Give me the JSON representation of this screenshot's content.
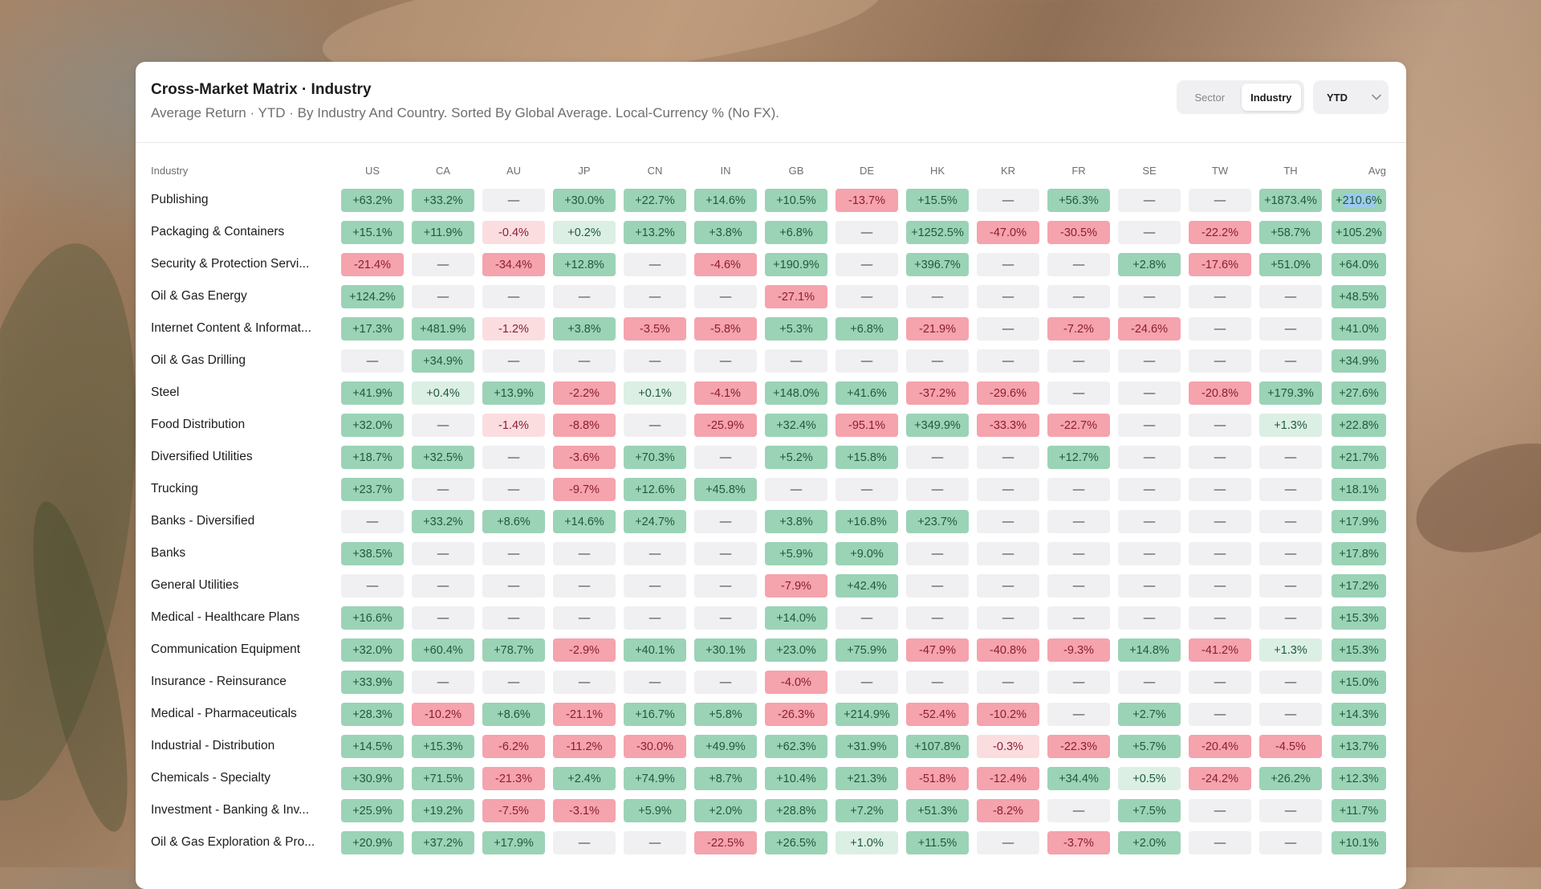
{
  "header": {
    "title": "Cross-Market Matrix · Industry",
    "subtitle": "Average Return · YTD · By Industry And Country. Sorted By Global Average. Local-Currency % (No FX)."
  },
  "toggle": {
    "options": [
      "Sector",
      "Industry"
    ],
    "active": "Industry"
  },
  "period": {
    "label": "YTD"
  },
  "icons": {
    "dropdown": "chevron-down-icon"
  },
  "colors": {
    "positive_strong": "#9bd3b6",
    "positive_weak": "#dcefe4",
    "negative_strong": "#f5a3ad",
    "negative_weak": "#fbdde0",
    "neutral": "#f0f0f2",
    "positive_text": "#1f5a3c",
    "negative_text": "#8a1f30",
    "highlight": "#9cc9ee"
  },
  "table": {
    "first_header": "Industry",
    "columns": [
      "US",
      "CA",
      "AU",
      "JP",
      "CN",
      "IN",
      "GB",
      "DE",
      "HK",
      "KR",
      "FR",
      "SE",
      "TW",
      "TH",
      "Avg"
    ],
    "rows": [
      {
        "label": "Publishing",
        "values": [
          "+63.2%",
          "+33.2%",
          "—",
          "+30.0%",
          "+22.7%",
          "+14.6%",
          "+10.5%",
          "-13.7%",
          "+15.5%",
          "—",
          "+56.3%",
          "—",
          "—",
          "+1873.4%",
          "+210.6%"
        ]
      },
      {
        "label": "Packaging & Containers",
        "values": [
          "+15.1%",
          "+11.9%",
          "-0.4%",
          "+0.2%",
          "+13.2%",
          "+3.8%",
          "+6.8%",
          "—",
          "+1252.5%",
          "-47.0%",
          "-30.5%",
          "—",
          "-22.2%",
          "+58.7%",
          "+105.2%"
        ]
      },
      {
        "label": "Security & Protection Servi...",
        "values": [
          "-21.4%",
          "—",
          "-34.4%",
          "+12.8%",
          "—",
          "-4.6%",
          "+190.9%",
          "—",
          "+396.7%",
          "—",
          "—",
          "+2.8%",
          "-17.6%",
          "+51.0%",
          "+64.0%"
        ]
      },
      {
        "label": "Oil & Gas Energy",
        "values": [
          "+124.2%",
          "—",
          "—",
          "—",
          "—",
          "—",
          "-27.1%",
          "—",
          "—",
          "—",
          "—",
          "—",
          "—",
          "—",
          "+48.5%"
        ]
      },
      {
        "label": "Internet Content & Informat...",
        "values": [
          "+17.3%",
          "+481.9%",
          "-1.2%",
          "+3.8%",
          "-3.5%",
          "-5.8%",
          "+5.3%",
          "+6.8%",
          "-21.9%",
          "—",
          "-7.2%",
          "-24.6%",
          "—",
          "—",
          "+41.0%"
        ]
      },
      {
        "label": "Oil & Gas Drilling",
        "values": [
          "—",
          "+34.9%",
          "—",
          "—",
          "—",
          "—",
          "—",
          "—",
          "—",
          "—",
          "—",
          "—",
          "—",
          "—",
          "+34.9%"
        ]
      },
      {
        "label": "Steel",
        "values": [
          "+41.9%",
          "+0.4%",
          "+13.9%",
          "-2.2%",
          "+0.1%",
          "-4.1%",
          "+148.0%",
          "+41.6%",
          "-37.2%",
          "-29.6%",
          "—",
          "—",
          "-20.8%",
          "+179.3%",
          "+27.6%"
        ]
      },
      {
        "label": "Food Distribution",
        "values": [
          "+32.0%",
          "—",
          "-1.4%",
          "-8.8%",
          "—",
          "-25.9%",
          "+32.4%",
          "-95.1%",
          "+349.9%",
          "-33.3%",
          "-22.7%",
          "—",
          "—",
          "+1.3%",
          "+22.8%"
        ]
      },
      {
        "label": "Diversified Utilities",
        "values": [
          "+18.7%",
          "+32.5%",
          "—",
          "-3.6%",
          "+70.3%",
          "—",
          "+5.2%",
          "+15.8%",
          "—",
          "—",
          "+12.7%",
          "—",
          "—",
          "—",
          "+21.7%"
        ]
      },
      {
        "label": "Trucking",
        "values": [
          "+23.7%",
          "—",
          "—",
          "-9.7%",
          "+12.6%",
          "+45.8%",
          "—",
          "—",
          "—",
          "—",
          "—",
          "—",
          "—",
          "—",
          "+18.1%"
        ]
      },
      {
        "label": "Banks - Diversified",
        "values": [
          "—",
          "+33.2%",
          "+8.6%",
          "+14.6%",
          "+24.7%",
          "—",
          "+3.8%",
          "+16.8%",
          "+23.7%",
          "—",
          "—",
          "—",
          "—",
          "—",
          "+17.9%"
        ]
      },
      {
        "label": "Banks",
        "values": [
          "+38.5%",
          "—",
          "—",
          "—",
          "—",
          "—",
          "+5.9%",
          "+9.0%",
          "—",
          "—",
          "—",
          "—",
          "—",
          "—",
          "+17.8%"
        ]
      },
      {
        "label": "General Utilities",
        "values": [
          "—",
          "—",
          "—",
          "—",
          "—",
          "—",
          "-7.9%",
          "+42.4%",
          "—",
          "—",
          "—",
          "—",
          "—",
          "—",
          "+17.2%"
        ]
      },
      {
        "label": "Medical - Healthcare Plans",
        "values": [
          "+16.6%",
          "—",
          "—",
          "—",
          "—",
          "—",
          "+14.0%",
          "—",
          "—",
          "—",
          "—",
          "—",
          "—",
          "—",
          "+15.3%"
        ]
      },
      {
        "label": "Communication Equipment",
        "values": [
          "+32.0%",
          "+60.4%",
          "+78.7%",
          "-2.9%",
          "+40.1%",
          "+30.1%",
          "+23.0%",
          "+75.9%",
          "-47.9%",
          "-40.8%",
          "-9.3%",
          "+14.8%",
          "-41.2%",
          "+1.3%",
          "+15.3%"
        ]
      },
      {
        "label": "Insurance - Reinsurance",
        "values": [
          "+33.9%",
          "—",
          "—",
          "—",
          "—",
          "—",
          "-4.0%",
          "—",
          "—",
          "—",
          "—",
          "—",
          "—",
          "—",
          "+15.0%"
        ]
      },
      {
        "label": "Medical - Pharmaceuticals",
        "values": [
          "+28.3%",
          "-10.2%",
          "+8.6%",
          "-21.1%",
          "+16.7%",
          "+5.8%",
          "-26.3%",
          "+214.9%",
          "-52.4%",
          "-10.2%",
          "—",
          "+2.7%",
          "—",
          "—",
          "+14.3%"
        ]
      },
      {
        "label": "Industrial - Distribution",
        "values": [
          "+14.5%",
          "+15.3%",
          "-6.2%",
          "-11.2%",
          "-30.0%",
          "+49.9%",
          "+62.3%",
          "+31.9%",
          "+107.8%",
          "-0.3%",
          "-22.3%",
          "+5.7%",
          "-20.4%",
          "-4.5%",
          "+13.7%"
        ]
      },
      {
        "label": "Chemicals - Specialty",
        "values": [
          "+30.9%",
          "+71.5%",
          "-21.3%",
          "+2.4%",
          "+74.9%",
          "+8.7%",
          "+10.4%",
          "+21.3%",
          "-51.8%",
          "-12.4%",
          "+34.4%",
          "+0.5%",
          "-24.2%",
          "+26.2%",
          "+12.3%"
        ]
      },
      {
        "label": "Investment - Banking & Inv...",
        "values": [
          "+25.9%",
          "+19.2%",
          "-7.5%",
          "-3.1%",
          "+5.9%",
          "+2.0%",
          "+28.8%",
          "+7.2%",
          "+51.3%",
          "-8.2%",
          "—",
          "+7.5%",
          "—",
          "—",
          "+11.7%"
        ]
      },
      {
        "label": "Oil & Gas Exploration & Pro...",
        "values": [
          "+20.9%",
          "+37.2%",
          "+17.9%",
          "—",
          "—",
          "-22.5%",
          "+26.5%",
          "+1.0%",
          "+11.5%",
          "—",
          "-3.7%",
          "+2.0%",
          "—",
          "—",
          "+10.1%"
        ]
      }
    ]
  }
}
